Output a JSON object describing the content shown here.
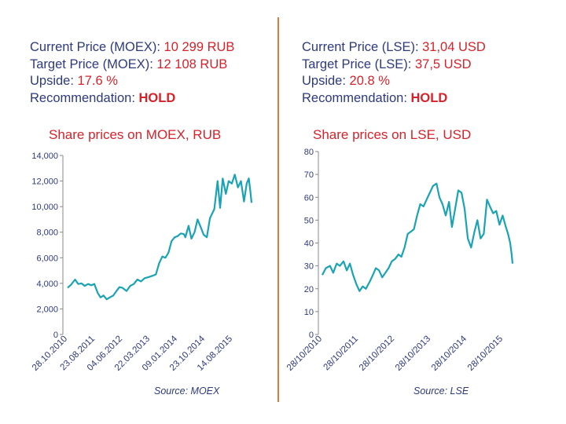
{
  "left_panel": {
    "line1_label": "Current Price (MOEX): ",
    "line1_value": "10 299 RUB",
    "line2_label": "Target Price (MOEX): ",
    "line2_value": "12 108 RUB",
    "line3_label": "Upside: ",
    "line3_value": "17.6 %",
    "line4_label": "Recommendation: ",
    "line4_value": "HOLD",
    "source": "Source: MOEX"
  },
  "right_panel": {
    "line1_label": "Current Price (LSE): ",
    "line1_value": "31,04 USD",
    "line2_label": "Target Price (LSE): ",
    "line2_value": "37,5 USD",
    "line3_label": "Upside: ",
    "line3_value": "20.8 %",
    "line4_label": "Recommendation: ",
    "line4_value": "HOLD",
    "source": "Source: LSE"
  },
  "colors": {
    "series": "#1aa3b5",
    "text": "#2e3a7d",
    "accent": "#d4232b",
    "divider": "#e07b39"
  },
  "chart_data": [
    {
      "type": "line",
      "title": "Share prices on MOEX, RUB",
      "xlabel": "",
      "ylabel": "",
      "ylim": [
        0,
        14000
      ],
      "y_ticks": [
        "0",
        "2,000",
        "4,000",
        "6,000",
        "8,000",
        "10,000",
        "12,000",
        "14,000"
      ],
      "x_tick_labels": [
        "28.10.2010",
        "23.08.2011",
        "04.06.2012",
        "22.03.2013",
        "09.01.2014",
        "23.10.2014",
        "14.08.2015"
      ],
      "x_range": [
        "2010-10-28",
        "2015-10-28"
      ],
      "grid": false,
      "series": [
        {
          "values": [
            [
              "2010-10-28",
              3650
            ],
            [
              "2010-12-01",
              3900
            ],
            [
              "2011-01-10",
              4300
            ],
            [
              "2011-02-10",
              3950
            ],
            [
              "2011-03-15",
              4000
            ],
            [
              "2011-04-15",
              3800
            ],
            [
              "2011-05-20",
              3950
            ],
            [
              "2011-06-20",
              3850
            ],
            [
              "2011-07-20",
              3950
            ],
            [
              "2011-08-23",
              3250
            ],
            [
              "2011-09-20",
              2900
            ],
            [
              "2011-10-20",
              3050
            ],
            [
              "2011-11-20",
              2750
            ],
            [
              "2011-12-20",
              2900
            ],
            [
              "2012-01-25",
              3050
            ],
            [
              "2012-02-25",
              3400
            ],
            [
              "2012-03-25",
              3700
            ],
            [
              "2012-04-25",
              3650
            ],
            [
              "2012-06-04",
              3400
            ],
            [
              "2012-07-10",
              3800
            ],
            [
              "2012-08-15",
              3950
            ],
            [
              "2012-09-20",
              4300
            ],
            [
              "2012-10-25",
              4150
            ],
            [
              "2012-12-01",
              4400
            ],
            [
              "2013-01-15",
              4500
            ],
            [
              "2013-02-20",
              4600
            ],
            [
              "2013-03-22",
              4700
            ],
            [
              "2013-04-25",
              5600
            ],
            [
              "2013-05-25",
              6100
            ],
            [
              "2013-06-25",
              6000
            ],
            [
              "2013-07-25",
              6400
            ],
            [
              "2013-08-25",
              7300
            ],
            [
              "2013-09-25",
              7600
            ],
            [
              "2013-10-25",
              7700
            ],
            [
              "2013-11-25",
              7900
            ],
            [
              "2013-12-25",
              7850
            ],
            [
              "2014-01-09",
              7600
            ],
            [
              "2014-02-10",
              8500
            ],
            [
              "2014-03-10",
              7500
            ],
            [
              "2014-04-10",
              8000
            ],
            [
              "2014-05-10",
              9000
            ],
            [
              "2014-06-10",
              8400
            ],
            [
              "2014-07-10",
              7800
            ],
            [
              "2014-08-10",
              7600
            ],
            [
              "2014-09-10",
              9100
            ],
            [
              "2014-10-23",
              9800
            ],
            [
              "2014-11-25",
              12000
            ],
            [
              "2014-12-20",
              9900
            ],
            [
              "2015-01-15",
              12200
            ],
            [
              "2015-02-15",
              11000
            ],
            [
              "2015-03-15",
              12000
            ],
            [
              "2015-04-15",
              11800
            ],
            [
              "2015-05-15",
              12500
            ],
            [
              "2015-06-15",
              11500
            ],
            [
              "2015-07-15",
              12000
            ],
            [
              "2015-08-14",
              10400
            ],
            [
              "2015-09-10",
              11800
            ],
            [
              "2015-10-01",
              12200
            ],
            [
              "2015-10-15",
              11300
            ],
            [
              "2015-10-28",
              10300
            ]
          ]
        }
      ]
    },
    {
      "type": "line",
      "title": "Share prices on LSE, USD",
      "xlabel": "",
      "ylabel": "",
      "ylim": [
        0,
        80
      ],
      "y_ticks": [
        "0",
        "10",
        "20",
        "30",
        "40",
        "50",
        "60",
        "70",
        "80"
      ],
      "x_tick_labels": [
        "28/10/2010",
        "28/10/2011",
        "28/10/2012",
        "28/10/2013",
        "28/10/2014",
        "28/10/2015"
      ],
      "x_range": [
        "2010-10-28",
        "2015-10-28"
      ],
      "grid": false,
      "series": [
        {
          "values": [
            [
              "2010-10-28",
              26
            ],
            [
              "2010-12-01",
              29
            ],
            [
              "2011-01-10",
              30
            ],
            [
              "2011-02-10",
              27
            ],
            [
              "2011-03-15",
              31
            ],
            [
              "2011-04-15",
              30
            ],
            [
              "2011-05-20",
              32
            ],
            [
              "2011-06-20",
              28
            ],
            [
              "2011-07-20",
              31
            ],
            [
              "2011-08-20",
              26
            ],
            [
              "2011-09-20",
              22
            ],
            [
              "2011-10-20",
              19
            ],
            [
              "2011-11-20",
              21
            ],
            [
              "2011-12-20",
              20
            ],
            [
              "2012-01-25",
              23
            ],
            [
              "2012-02-25",
              26
            ],
            [
              "2012-03-25",
              29
            ],
            [
              "2012-04-25",
              28
            ],
            [
              "2012-05-25",
              25
            ],
            [
              "2012-06-25",
              27
            ],
            [
              "2012-07-25",
              29
            ],
            [
              "2012-08-25",
              32
            ],
            [
              "2012-09-25",
              33
            ],
            [
              "2012-10-28",
              35
            ],
            [
              "2012-11-25",
              34
            ],
            [
              "2012-12-25",
              38
            ],
            [
              "2013-01-25",
              44
            ],
            [
              "2013-02-25",
              45
            ],
            [
              "2013-03-25",
              46
            ],
            [
              "2013-04-25",
              52
            ],
            [
              "2013-05-25",
              57
            ],
            [
              "2013-06-25",
              56
            ],
            [
              "2013-07-25",
              59
            ],
            [
              "2013-08-25",
              62
            ],
            [
              "2013-09-25",
              65
            ],
            [
              "2013-10-28",
              66
            ],
            [
              "2013-11-25",
              60
            ],
            [
              "2013-12-25",
              57
            ],
            [
              "2014-01-25",
              52
            ],
            [
              "2014-02-25",
              58
            ],
            [
              "2014-03-25",
              47
            ],
            [
              "2014-04-25",
              55
            ],
            [
              "2014-05-25",
              63
            ],
            [
              "2014-06-25",
              62
            ],
            [
              "2014-07-25",
              55
            ],
            [
              "2014-08-25",
              42
            ],
            [
              "2014-09-25",
              38
            ],
            [
              "2014-10-28",
              45
            ],
            [
              "2014-11-25",
              50
            ],
            [
              "2014-12-25",
              42
            ],
            [
              "2015-01-25",
              44
            ],
            [
              "2015-02-25",
              59
            ],
            [
              "2015-03-25",
              56
            ],
            [
              "2015-04-25",
              53
            ],
            [
              "2015-05-25",
              54
            ],
            [
              "2015-06-25",
              48
            ],
            [
              "2015-07-25",
              52
            ],
            [
              "2015-08-25",
              47
            ],
            [
              "2015-09-15",
              44
            ],
            [
              "2015-10-05",
              40
            ],
            [
              "2015-10-20",
              35
            ],
            [
              "2015-10-28",
              31
            ]
          ]
        }
      ]
    }
  ]
}
